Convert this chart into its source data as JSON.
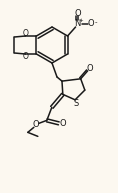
{
  "bg_color": "#fcf8f0",
  "line_color": "#1a1a1a",
  "lw": 1.1,
  "fig_width": 1.18,
  "fig_height": 1.93,
  "dpi": 100,
  "xlim": [
    0,
    118
  ],
  "ylim": [
    0,
    193
  ]
}
